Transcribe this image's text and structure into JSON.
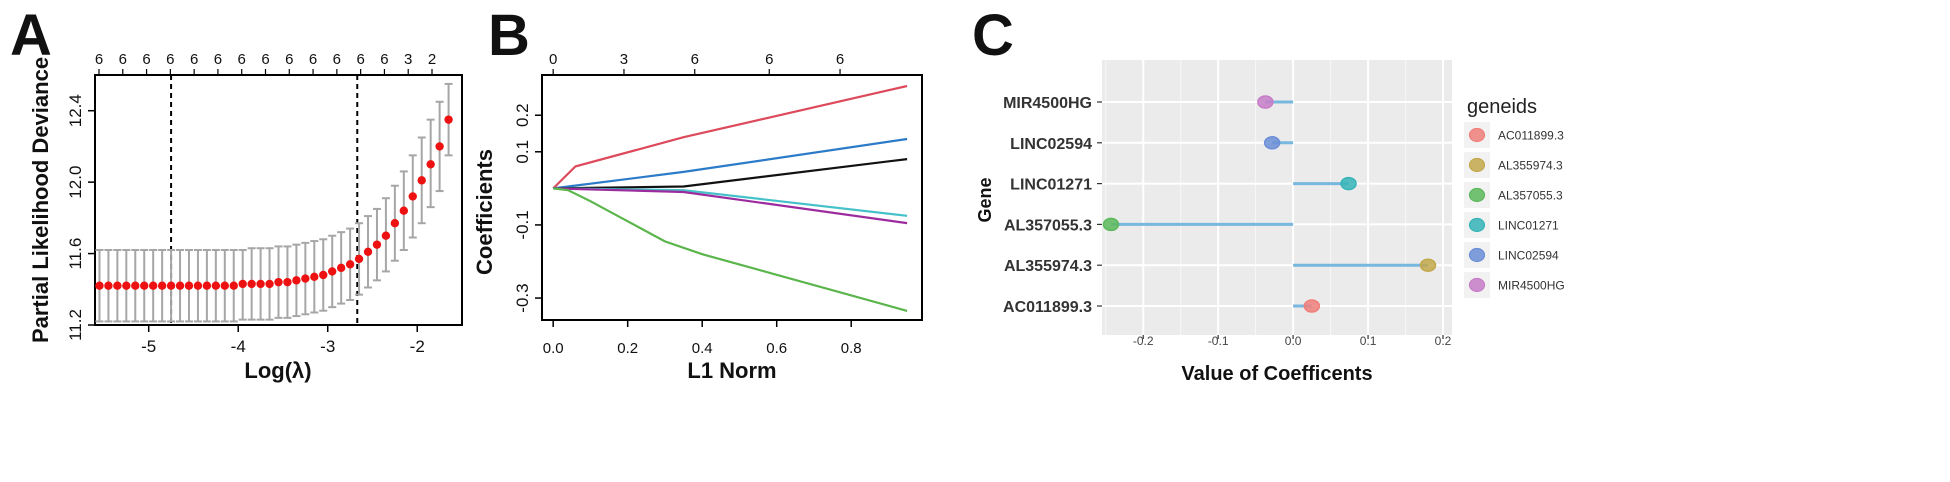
{
  "panels": {
    "a": "A",
    "b": "B",
    "c": "C"
  },
  "chart_data": [
    {
      "type": "scatter",
      "panel": "A",
      "xlabel": "Log(λ)",
      "ylabel": "Partial Likelihood Deviance",
      "xlim": [
        -5.6,
        -1.5
      ],
      "ylim": [
        11.2,
        12.6
      ],
      "x_ticks": [
        -5,
        -4,
        -3,
        -2
      ],
      "y_ticks": [
        11.2,
        11.6,
        12.0,
        12.4
      ],
      "y_tick_labels": [
        "11.2",
        "11.6",
        "12.0",
        "12.4"
      ],
      "top_axis_labels": [
        "6",
        "6",
        "6",
        "6",
        "6",
        "6",
        "6",
        "6",
        "6",
        "6",
        "6",
        "6",
        "6",
        "3",
        "2"
      ],
      "vlines": [
        -4.75,
        -2.67
      ],
      "x": [
        -5.55,
        -5.45,
        -5.35,
        -5.25,
        -5.15,
        -5.05,
        -4.95,
        -4.85,
        -4.75,
        -4.65,
        -4.55,
        -4.45,
        -4.35,
        -4.25,
        -4.15,
        -4.05,
        -3.95,
        -3.85,
        -3.75,
        -3.65,
        -3.55,
        -3.45,
        -3.35,
        -3.25,
        -3.15,
        -3.05,
        -2.95,
        -2.85,
        -2.75,
        -2.65,
        -2.55,
        -2.45,
        -2.35,
        -2.25,
        -2.15,
        -2.05,
        -1.95,
        -1.85,
        -1.75,
        -1.65
      ],
      "y": [
        11.42,
        11.42,
        11.42,
        11.42,
        11.42,
        11.42,
        11.42,
        11.42,
        11.42,
        11.42,
        11.42,
        11.42,
        11.42,
        11.42,
        11.42,
        11.42,
        11.43,
        11.43,
        11.43,
        11.43,
        11.44,
        11.44,
        11.45,
        11.46,
        11.47,
        11.48,
        11.5,
        11.52,
        11.54,
        11.57,
        11.61,
        11.65,
        11.7,
        11.77,
        11.84,
        11.92,
        12.01,
        12.1,
        12.2,
        12.35
      ],
      "upper": [
        11.62,
        11.62,
        11.62,
        11.62,
        11.62,
        11.62,
        11.62,
        11.62,
        11.62,
        11.62,
        11.62,
        11.62,
        11.62,
        11.62,
        11.62,
        11.62,
        11.62,
        11.63,
        11.63,
        11.63,
        11.64,
        11.64,
        11.65,
        11.66,
        11.67,
        11.68,
        11.7,
        11.72,
        11.74,
        11.77,
        11.81,
        11.85,
        11.91,
        11.98,
        12.06,
        12.15,
        12.25,
        12.35,
        12.45,
        12.55
      ],
      "lower": [
        11.22,
        11.22,
        11.22,
        11.22,
        11.22,
        11.22,
        11.22,
        11.22,
        11.22,
        11.22,
        11.22,
        11.22,
        11.22,
        11.22,
        11.22,
        11.22,
        11.23,
        11.23,
        11.23,
        11.23,
        11.24,
        11.24,
        11.25,
        11.26,
        11.27,
        11.28,
        11.3,
        11.32,
        11.34,
        11.37,
        11.41,
        11.45,
        11.5,
        11.56,
        11.62,
        11.69,
        11.77,
        11.86,
        11.95,
        12.15
      ]
    },
    {
      "type": "line",
      "panel": "B",
      "xlabel": "L1 Norm",
      "ylabel": "Coefficients",
      "xlim": [
        -0.03,
        0.99
      ],
      "ylim": [
        -0.36,
        0.31
      ],
      "x_ticks": [
        0.0,
        0.2,
        0.4,
        0.6,
        0.8
      ],
      "x_tick_labels": [
        "0.0",
        "0.2",
        "0.4",
        "0.6",
        "0.8"
      ],
      "y_ticks": [
        0.2,
        0.1,
        -0.1,
        -0.3
      ],
      "y_tick_labels": [
        "0.2",
        "0.1",
        "-0.1",
        "-0.3"
      ],
      "top_axis_labels": [
        "0",
        "3",
        "6",
        "6",
        "6"
      ],
      "top_axis_positions": [
        0.0,
        0.19,
        0.38,
        0.58,
        0.77
      ],
      "colors": [
        "#dd4a5b",
        "#2c7bc8",
        "#111111",
        "#44c1c9",
        "#9c2c9e",
        "#5ab54a"
      ],
      "series": [
        {
          "x": [
            0,
            0.06,
            0.35,
            0.95
          ],
          "y": [
            0,
            0.06,
            0.14,
            0.28
          ]
        },
        {
          "x": [
            0,
            0.35,
            0.95
          ],
          "y": [
            0,
            0.045,
            0.135
          ]
        },
        {
          "x": [
            0,
            0.35,
            0.95
          ],
          "y": [
            0,
            0.005,
            0.08
          ]
        },
        {
          "x": [
            0,
            0.35,
            0.95
          ],
          "y": [
            0,
            -0.005,
            -0.075
          ]
        },
        {
          "x": [
            0,
            0.35,
            0.95
          ],
          "y": [
            0,
            -0.01,
            -0.095
          ]
        },
        {
          "x": [
            0,
            0.04,
            0.1,
            0.2,
            0.3,
            0.4,
            0.95
          ],
          "y": [
            0,
            -0.005,
            -0.035,
            -0.09,
            -0.145,
            -0.18,
            -0.335
          ]
        }
      ]
    },
    {
      "type": "lollipop",
      "panel": "C",
      "xlabel": "Value of Coefficents",
      "ylabel": "Gene",
      "xlim": [
        -0.255,
        0.2
      ],
      "x_ticks": [
        -0.2,
        -0.1,
        0.0,
        0.1,
        0.2
      ],
      "x_tick_labels": [
        "-0.2",
        "-0.1",
        "0.0",
        "0.1",
        "0.2"
      ],
      "categories": [
        "MIR4500HG",
        "LINC02594",
        "LINC01271",
        "AL357055.3",
        "AL355974.3",
        "AC011899.3"
      ],
      "values": [
        -0.037,
        -0.028,
        0.074,
        -0.243,
        0.18,
        0.025
      ],
      "point_colors": [
        "#c77cc8",
        "#6b8ed6",
        "#35b4b8",
        "#5cb85c",
        "#c2a84b",
        "#f07f7a"
      ],
      "stem_color": "#78b8df",
      "legend": {
        "title": "geneids",
        "items": [
          {
            "label": "AC011899.3",
            "color": "#f07f7a"
          },
          {
            "label": "AL355974.3",
            "color": "#c2a84b"
          },
          {
            "label": "AL357055.3",
            "color": "#5cb85c"
          },
          {
            "label": "LINC01271",
            "color": "#35b4b8"
          },
          {
            "label": "LINC02594",
            "color": "#6b8ed6"
          },
          {
            "label": "MIR4500HG",
            "color": "#c77cc8"
          }
        ]
      }
    }
  ]
}
